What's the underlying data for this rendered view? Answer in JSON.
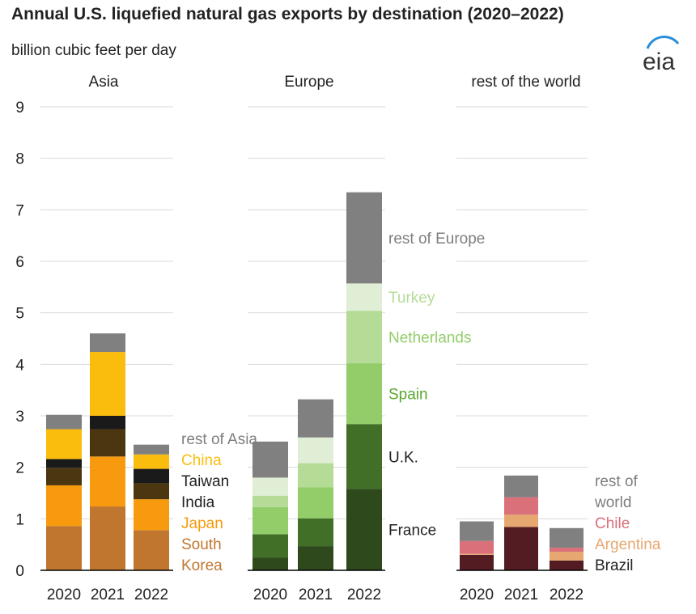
{
  "title": "Annual U.S. liquefied natural gas exports by destination (2020–2022)",
  "subtitle": "billion cubic feet per day",
  "logo_text": "eia",
  "colors": {
    "grid": "#d9d9d9",
    "axis": "#000000",
    "text": "#222222",
    "gray_label": "#7f7f7f",
    "logo_text": "#333333",
    "logo_arc": "#2b8fd6"
  },
  "chart_data": {
    "type": "bar",
    "stacked": true,
    "title": "Annual U.S. liquefied natural gas exports by destination (2020–2022)",
    "ylabel": "billion cubic feet per day",
    "ylim": [
      0,
      9
    ],
    "yticks": [
      0,
      1,
      2,
      3,
      4,
      5,
      6,
      7,
      8,
      9
    ],
    "grid": true,
    "categories": [
      "2020",
      "2021",
      "2022"
    ],
    "panels": [
      {
        "name": "Asia",
        "series": [
          {
            "name": "South Korea",
            "label_lines": [
              "South",
              "Korea"
            ],
            "color": "#c0762e",
            "label_color": "#c0762e",
            "values": [
              0.86,
              1.24,
              0.78
            ]
          },
          {
            "name": "Japan",
            "label_lines": [
              "Japan"
            ],
            "color": "#f79a0e",
            "label_color": "#f79a0e",
            "values": [
              0.79,
              0.97,
              0.6
            ]
          },
          {
            "name": "India",
            "label_lines": [
              "India"
            ],
            "color": "#4b3610",
            "label_color": "#222222",
            "values": [
              0.34,
              0.53,
              0.31
            ]
          },
          {
            "name": "Taiwan",
            "label_lines": [
              "Taiwan"
            ],
            "color": "#1a1a1a",
            "label_color": "#222222",
            "values": [
              0.17,
              0.26,
              0.28
            ]
          },
          {
            "name": "China",
            "label_lines": [
              "China"
            ],
            "color": "#fbbd0d",
            "label_color": "#fbbd0d",
            "values": [
              0.58,
              1.24,
              0.28
            ]
          },
          {
            "name": "rest of Asia",
            "label_lines": [
              "rest of Asia"
            ],
            "color": "#808080",
            "label_color": "#7f7f7f",
            "values": [
              0.28,
              0.36,
              0.19
            ]
          }
        ]
      },
      {
        "name": "Europe",
        "series": [
          {
            "name": "France",
            "label_lines": [
              "France"
            ],
            "color": "#2e4a1d",
            "label_color": "#222222",
            "values": [
              0.25,
              0.47,
              1.58
            ]
          },
          {
            "name": "U.K.",
            "label_lines": [
              "U.K."
            ],
            "color": "#416f27",
            "label_color": "#222222",
            "values": [
              0.45,
              0.54,
              1.26
            ]
          },
          {
            "name": "Spain",
            "label_lines": [
              "Spain"
            ],
            "color": "#93cd6a",
            "label_color": "#5aa82e",
            "values": [
              0.53,
              0.6,
              1.18
            ]
          },
          {
            "name": "Netherlands",
            "label_lines": [
              "Netherlands"
            ],
            "color": "#b5dc97",
            "label_color": "#93cd6a",
            "values": [
              0.22,
              0.47,
              1.02
            ]
          },
          {
            "name": "Turkey",
            "label_lines": [
              "Turkey"
            ],
            "color": "#dfeed4",
            "label_color": "#b5dc97",
            "values": [
              0.35,
              0.5,
              0.53
            ]
          },
          {
            "name": "rest of Europe",
            "label_lines": [
              "rest of Europe"
            ],
            "color": "#808080",
            "label_color": "#7f7f7f",
            "values": [
              0.7,
              0.74,
              1.77
            ]
          }
        ]
      },
      {
        "name": "rest of the world",
        "series": [
          {
            "name": "Brazil",
            "label_lines": [
              "Brazil"
            ],
            "color": "#521c22",
            "label_color": "#222222",
            "values": [
              0.3,
              0.84,
              0.19
            ]
          },
          {
            "name": "Argentina",
            "label_lines": [
              "Argentina"
            ],
            "color": "#e6a870",
            "label_color": "#e6a870",
            "values": [
              0.02,
              0.24,
              0.17
            ]
          },
          {
            "name": "Chile",
            "label_lines": [
              "Chile"
            ],
            "color": "#d9707a",
            "label_color": "#d9707a",
            "values": [
              0.25,
              0.34,
              0.08
            ]
          },
          {
            "name": "rest of world",
            "label_lines": [
              "rest of",
              "world"
            ],
            "color": "#808080",
            "label_color": "#7f7f7f",
            "values": [
              0.38,
              0.42,
              0.38
            ]
          }
        ]
      }
    ]
  }
}
